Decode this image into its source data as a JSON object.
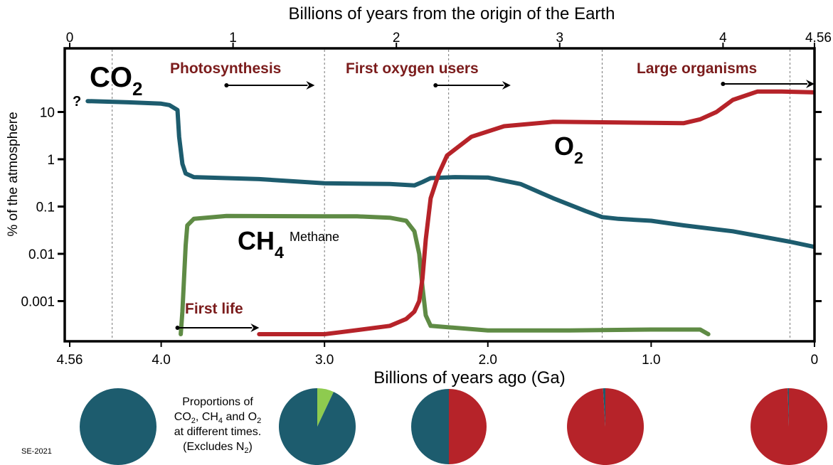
{
  "chart_data": {
    "type": "line",
    "title": "",
    "xlabel_top": "Billions of years from the origin of the Earth",
    "xlabel_bottom": "Billions of years ago (Ga)",
    "ylabel": "% of the atmosphere",
    "y_scale": "log",
    "ylim": [
      0.0002,
      100
    ],
    "xlim_ga": [
      4.56,
      0
    ],
    "top_ticks": [
      {
        "label": "0",
        "ga": 4.56
      },
      {
        "label": "1",
        "ga": 3.56
      },
      {
        "label": "2",
        "ga": 2.56
      },
      {
        "label": "3",
        "ga": 1.56
      },
      {
        "label": "4",
        "ga": 0.56
      },
      {
        "label": "4.56",
        "ga": 0
      }
    ],
    "bottom_ticks": [
      {
        "label": "4.56",
        "ga": 4.56
      },
      {
        "label": "4.0",
        "ga": 4.0
      },
      {
        "label": "3.0",
        "ga": 3.0
      },
      {
        "label": "2.0",
        "ga": 2.0
      },
      {
        "label": "1.0",
        "ga": 1.0
      },
      {
        "label": "0",
        "ga": 0
      }
    ],
    "y_ticks": [
      {
        "label": "10",
        "value": 10
      },
      {
        "label": "1",
        "value": 1
      },
      {
        "label": "0.1",
        "value": 0.1
      },
      {
        "label": "0.01",
        "value": 0.01
      },
      {
        "label": "0.001",
        "value": 0.001
      }
    ],
    "gridlines_ga": [
      4.3,
      3.0,
      2.24,
      1.3,
      0.15
    ],
    "series": [
      {
        "key": "co2",
        "label_main": "CO",
        "label_sub": "2",
        "color": "#1d5c6e",
        "unknown_marker": "?",
        "points": [
          [
            4.45,
            17
          ],
          [
            4.2,
            16
          ],
          [
            4.0,
            15
          ],
          [
            3.95,
            14
          ],
          [
            3.9,
            11
          ],
          [
            3.89,
            3
          ],
          [
            3.87,
            0.8
          ],
          [
            3.85,
            0.5
          ],
          [
            3.8,
            0.42
          ],
          [
            3.6,
            0.4
          ],
          [
            3.4,
            0.38
          ],
          [
            3.0,
            0.31
          ],
          [
            2.6,
            0.3
          ],
          [
            2.45,
            0.28
          ],
          [
            2.4,
            0.33
          ],
          [
            2.35,
            0.4
          ],
          [
            2.2,
            0.42
          ],
          [
            2.0,
            0.41
          ],
          [
            1.8,
            0.3
          ],
          [
            1.6,
            0.15
          ],
          [
            1.4,
            0.08
          ],
          [
            1.3,
            0.06
          ],
          [
            1.2,
            0.055
          ],
          [
            1.0,
            0.05
          ],
          [
            0.8,
            0.04
          ],
          [
            0.5,
            0.03
          ],
          [
            0.15,
            0.018
          ],
          [
            0,
            0.014
          ]
        ]
      },
      {
        "key": "ch4",
        "label_main": "CH",
        "label_sub": "4",
        "label_suffix": "Methane",
        "color": "#5f8b45",
        "points": [
          [
            3.88,
            0.0002
          ],
          [
            3.87,
            0.0006
          ],
          [
            3.86,
            0.003
          ],
          [
            3.85,
            0.015
          ],
          [
            3.84,
            0.04
          ],
          [
            3.8,
            0.055
          ],
          [
            3.6,
            0.063
          ],
          [
            3.0,
            0.062
          ],
          [
            2.8,
            0.062
          ],
          [
            2.6,
            0.058
          ],
          [
            2.5,
            0.05
          ],
          [
            2.45,
            0.03
          ],
          [
            2.42,
            0.01
          ],
          [
            2.4,
            0.002
          ],
          [
            2.38,
            0.0005
          ],
          [
            2.35,
            0.0003
          ],
          [
            2.0,
            0.00024
          ],
          [
            1.5,
            0.00024
          ],
          [
            1.0,
            0.00025
          ],
          [
            0.7,
            0.00025
          ],
          [
            0.65,
            0.0002
          ]
        ]
      },
      {
        "key": "o2",
        "label_main": "O",
        "label_sub": "2",
        "color": "#b62329",
        "points": [
          [
            3.4,
            0.0002
          ],
          [
            3.0,
            0.0002
          ],
          [
            2.9,
            0.00022
          ],
          [
            2.6,
            0.0003
          ],
          [
            2.5,
            0.00042
          ],
          [
            2.45,
            0.0006
          ],
          [
            2.42,
            0.001
          ],
          [
            2.4,
            0.003
          ],
          [
            2.38,
            0.02
          ],
          [
            2.35,
            0.15
          ],
          [
            2.3,
            0.5
          ],
          [
            2.25,
            1.2
          ],
          [
            2.1,
            3
          ],
          [
            1.9,
            5
          ],
          [
            1.6,
            6.2
          ],
          [
            1.2,
            6
          ],
          [
            0.8,
            5.8
          ],
          [
            0.7,
            7
          ],
          [
            0.6,
            10
          ],
          [
            0.5,
            18
          ],
          [
            0.35,
            27
          ],
          [
            0.2,
            27
          ],
          [
            0,
            26
          ]
        ]
      }
    ],
    "events": [
      {
        "label": "Photosynthesis",
        "from_ga": 3.6,
        "to_ga": 3.06
      },
      {
        "label": "First oxygen users",
        "from_ga": 2.32,
        "to_ga": 1.86
      },
      {
        "label": "Large organisms",
        "from_ga": 0.56,
        "to_ga": 0.0
      },
      {
        "label": "First life",
        "from_ga": 3.9,
        "to_ga": 3.4
      }
    ],
    "pies": [
      {
        "ga": 4.56,
        "co2": 100,
        "ch4": 0,
        "o2": 0
      },
      {
        "ga": 3.0,
        "co2": 93,
        "ch4": 7,
        "o2": 0
      },
      {
        "ga": 2.0,
        "co2": 50,
        "ch4": 0,
        "o2": 50
      },
      {
        "ga": 1.0,
        "co2": 1,
        "ch4": 0,
        "o2": 99
      },
      {
        "ga": 0.0,
        "co2": 0.5,
        "ch4": 0,
        "o2": 99.5
      }
    ],
    "pie_colors": {
      "co2": "#1d5c6e",
      "ch4": "#8ecb4f",
      "o2": "#b62329"
    },
    "pie_note": {
      "line1": "Proportions of",
      "line2_parts": [
        "CO",
        "2",
        ", CH",
        "4",
        " and O",
        "2"
      ],
      "line3": "at different times.",
      "line4_parts": [
        "(Excludes N",
        "2",
        ")"
      ]
    }
  },
  "credit": "SE-2021"
}
